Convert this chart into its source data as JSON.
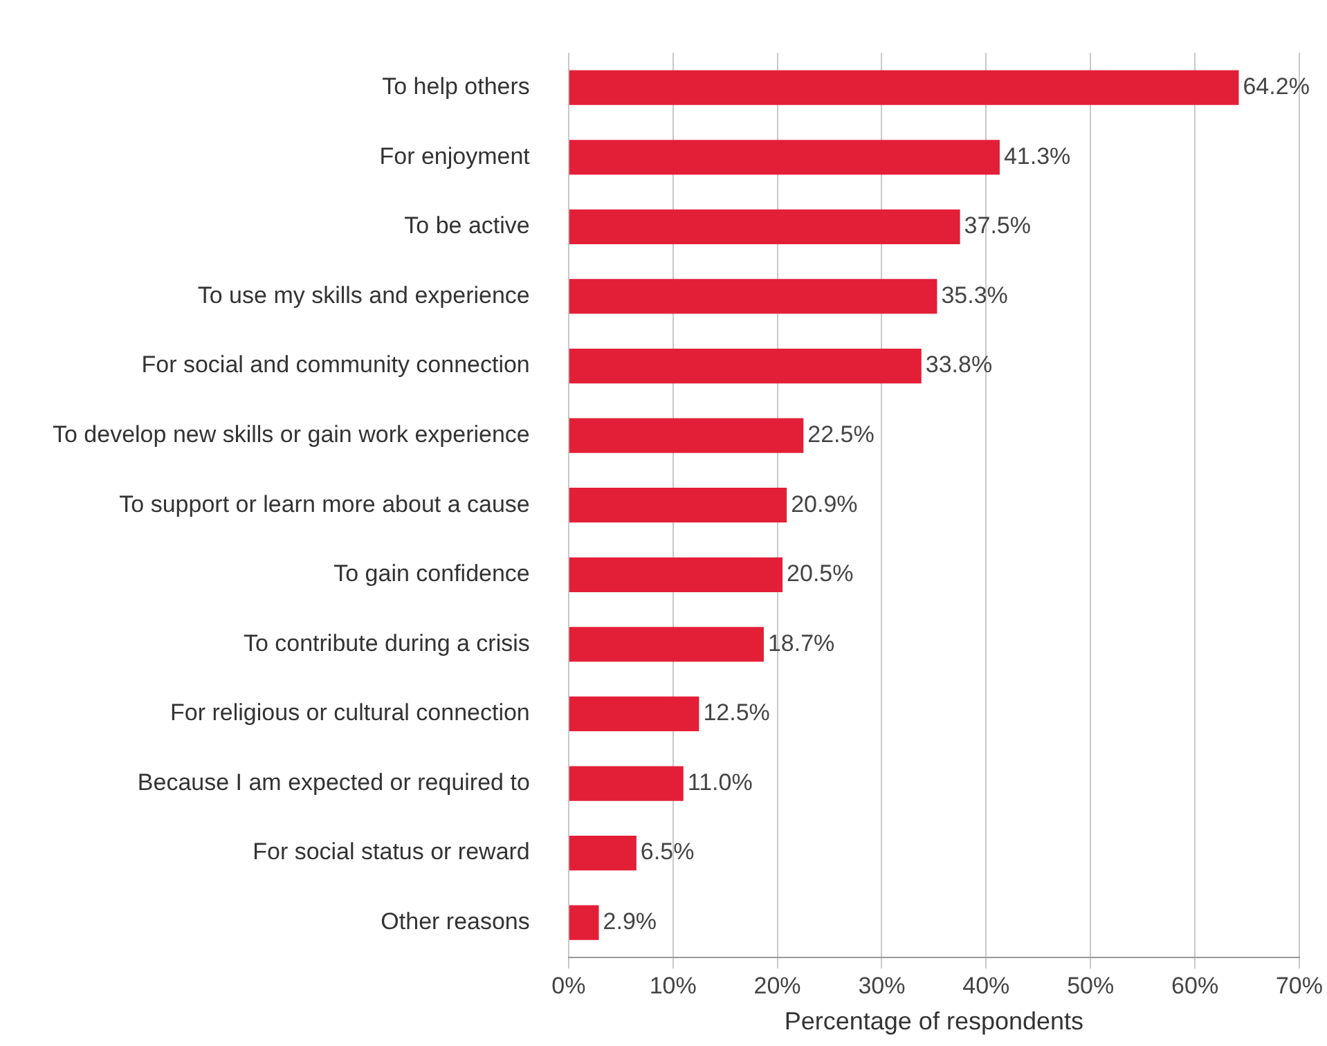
{
  "chart_data": {
    "type": "bar",
    "orientation": "horizontal",
    "xlabel": "Percentage of respondents",
    "categories": [
      "To help others",
      "For enjoyment",
      "To be active",
      "To use my skills and experience",
      "For social and community connection",
      "To develop new skills or gain work experience",
      "To support or learn more about a cause",
      "To gain confidence",
      "To contribute during a crisis",
      "For religious or cultural connection",
      "Because I am expected or required to",
      "For social status or reward",
      "Other reasons"
    ],
    "values": [
      64.2,
      41.3,
      37.5,
      35.3,
      33.8,
      22.5,
      20.9,
      20.5,
      18.7,
      12.5,
      11.0,
      6.5,
      2.9
    ],
    "value_labels": [
      "64.2%",
      "41.3%",
      "37.5%",
      "35.3%",
      "33.8%",
      "22.5%",
      "20.9%",
      "20.5%",
      "18.7%",
      "12.5%",
      "11.0%",
      "6.5%",
      "2.9%"
    ],
    "color": "#e31f37",
    "xlim": [
      0,
      70
    ],
    "xticks": [
      {
        "value": 0,
        "label": "0%"
      },
      {
        "value": 10,
        "label": "10%"
      },
      {
        "value": 20,
        "label": "20%"
      },
      {
        "value": 30,
        "label": "30%"
      },
      {
        "value": 40,
        "label": "40%"
      },
      {
        "value": 50,
        "label": "50%"
      },
      {
        "value": 60,
        "label": "60%"
      },
      {
        "value": 70,
        "label": "70%"
      }
    ],
    "grid": "x",
    "legend": false
  }
}
